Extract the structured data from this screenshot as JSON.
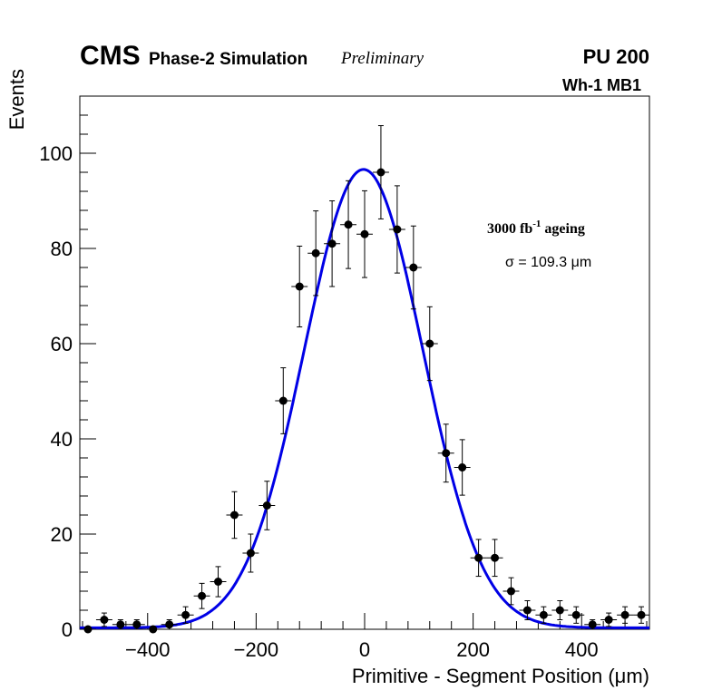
{
  "chart_data": {
    "type": "scatter",
    "title": "",
    "header": {
      "cms": "CMS",
      "simulation": "Phase-2 Simulation",
      "preliminary": "Preliminary",
      "pileup": "PU 200"
    },
    "labels": {
      "station": "Wh-1 MB1",
      "ageing_prefix": "3000 fb",
      "ageing_exp": "-1",
      "ageing_suffix": " ageing",
      "sigma": "σ = 109.3 μm"
    },
    "xlabel": "Primitive - Segment Position (μm)",
    "ylabel": "Events",
    "xlim": [
      -525,
      525
    ],
    "ylim": [
      0,
      112
    ],
    "xticks": [
      -400,
      -200,
      0,
      200,
      400
    ],
    "xtick_labels": [
      "−400",
      "−200",
      "0",
      "200",
      "400"
    ],
    "yticks": [
      0,
      20,
      40,
      60,
      80,
      100
    ],
    "ytick_labels": [
      "0",
      "20",
      "40",
      "60",
      "80",
      "100"
    ],
    "bin_width": 30,
    "series": [
      {
        "name": "data",
        "style": "points-with-errors",
        "color": "#000000",
        "x": [
          -510,
          -480,
          -450,
          -420,
          -390,
          -360,
          -330,
          -300,
          -270,
          -240,
          -210,
          -180,
          -150,
          -120,
          -90,
          -60,
          -30,
          0,
          30,
          60,
          90,
          120,
          150,
          180,
          210,
          240,
          270,
          300,
          330,
          360,
          390,
          420,
          450,
          480,
          510
        ],
        "y": [
          0,
          2,
          1,
          1,
          0,
          1,
          3,
          7,
          10,
          24,
          16,
          26,
          48,
          72,
          79,
          81,
          85,
          83,
          96,
          84,
          76,
          60,
          37,
          34,
          15,
          15,
          8,
          4,
          3,
          4,
          3,
          1,
          2,
          3,
          3
        ]
      },
      {
        "name": "gaussian fit",
        "style": "line",
        "color": "#0000e6",
        "amplitude": 96.3,
        "mean": -2,
        "sigma": 109.3,
        "baseline": 0.3
      }
    ]
  }
}
